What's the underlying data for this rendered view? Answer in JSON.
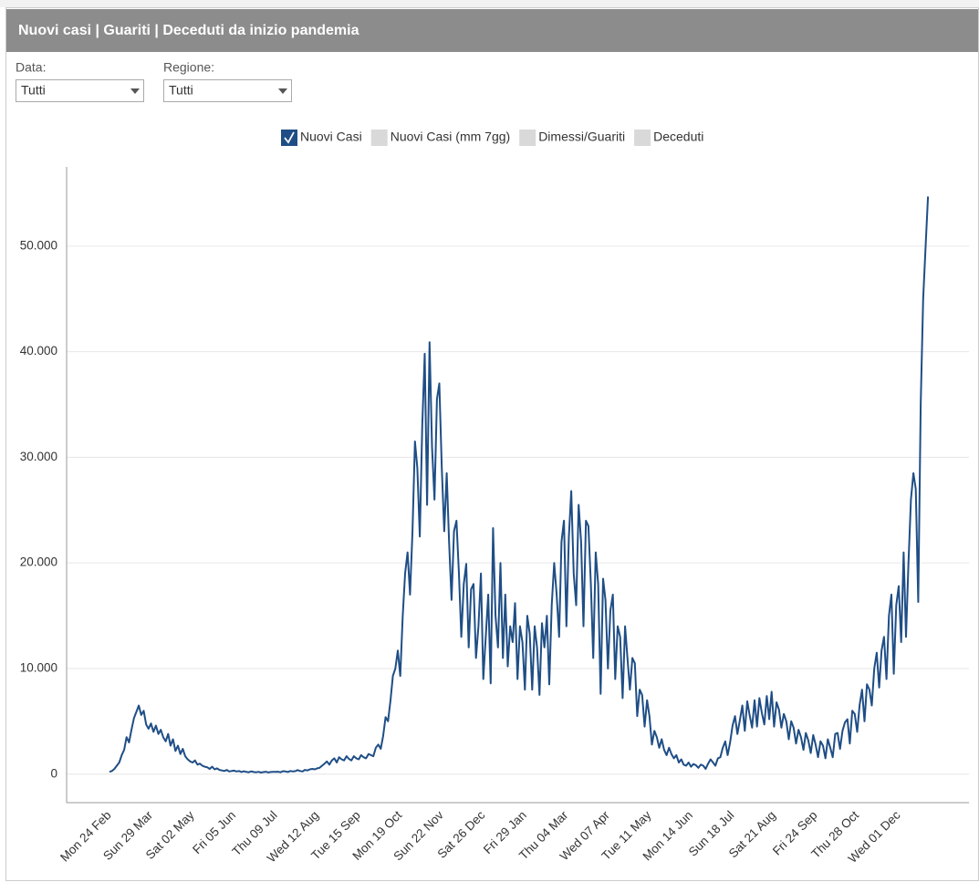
{
  "header": {
    "title": "Nuovi casi | Guariti | Deceduti da inizio pandemia"
  },
  "filters": [
    {
      "label": "Data:",
      "value": "Tutti"
    },
    {
      "label": "Regione:",
      "value": "Tutti"
    }
  ],
  "chart_data": {
    "type": "line",
    "categories": [
      "Mon 24 Feb",
      null,
      null,
      null,
      null,
      null,
      null,
      null,
      null,
      null,
      null,
      null,
      null,
      null,
      null,
      null,
      null,
      "Sun 29 Mar",
      null,
      null,
      null,
      null,
      null,
      null,
      null,
      null,
      null,
      null,
      null,
      null,
      null,
      null,
      null,
      null,
      "Sat 02 May",
      null,
      null,
      null,
      null,
      null,
      null,
      null,
      null,
      null,
      null,
      null,
      null,
      null,
      null,
      null,
      null,
      "Fri 05 Jun",
      null,
      null,
      null,
      null,
      null,
      null,
      null,
      null,
      null,
      null,
      null,
      null,
      null,
      null,
      null,
      null,
      "Thu 09 Jul",
      null,
      null,
      null,
      null,
      null,
      null,
      null,
      null,
      null,
      null,
      null,
      null,
      null,
      null,
      null,
      null,
      "Wed 12 Aug",
      null,
      null,
      null,
      null,
      null,
      null,
      null,
      null,
      null,
      null,
      null,
      null,
      null,
      null,
      null,
      null,
      "Tue 15 Sep",
      null,
      null,
      null,
      null,
      null,
      null,
      null,
      null,
      null,
      null,
      null,
      null,
      null,
      null,
      null,
      null,
      "Mon 19 Oct",
      null,
      null,
      null,
      null,
      null,
      null,
      null,
      null,
      null,
      null,
      null,
      null,
      null,
      null,
      null,
      null,
      "Sun 22 Nov",
      null,
      null,
      null,
      null,
      null,
      null,
      null,
      null,
      null,
      null,
      null,
      null,
      null,
      null,
      null,
      null,
      "Sat 26 Dec",
      null,
      null,
      null,
      null,
      null,
      null,
      null,
      null,
      null,
      null,
      null,
      null,
      null,
      null,
      null,
      null,
      "Fri 29 Jan",
      null,
      null,
      null,
      null,
      null,
      null,
      null,
      null,
      null,
      null,
      null,
      null,
      null,
      null,
      null,
      null,
      "Thu 04 Mar",
      null,
      null,
      null,
      null,
      null,
      null,
      null,
      null,
      null,
      null,
      null,
      null,
      null,
      null,
      null,
      null,
      "Wed 07 Apr",
      null,
      null,
      null,
      null,
      null,
      null,
      null,
      null,
      null,
      null,
      null,
      null,
      null,
      null,
      null,
      null,
      "Tue 11 May",
      null,
      null,
      null,
      null,
      null,
      null,
      null,
      null,
      null,
      null,
      null,
      null,
      null,
      null,
      null,
      null,
      "Mon 14 Jun",
      null,
      null,
      null,
      null,
      null,
      null,
      null,
      null,
      null,
      null,
      null,
      null,
      null,
      null,
      null,
      null,
      "Sun 18 Jul",
      null,
      null,
      null,
      null,
      null,
      null,
      null,
      null,
      null,
      null,
      null,
      null,
      null,
      null,
      null,
      null,
      "Sat 21 Aug",
      null,
      null,
      null,
      null,
      null,
      null,
      null,
      null,
      null,
      null,
      null,
      null,
      null,
      null,
      null,
      null,
      "Fri 24 Sep",
      null,
      null,
      null,
      null,
      null,
      null,
      null,
      null,
      null,
      null,
      null,
      null,
      null,
      null,
      null,
      null,
      "Thu 28 Oct",
      null,
      null,
      null,
      null,
      null,
      null,
      null,
      null,
      null,
      null,
      null,
      null,
      null,
      null,
      null,
      null,
      "Wed 01 Dec",
      null,
      null,
      null,
      null,
      null,
      null,
      null,
      null,
      null,
      null,
      null,
      null
    ],
    "series": [
      {
        "name": "Nuovi Casi",
        "color": "#1f4e86",
        "values": [
          220,
          300,
          500,
          800,
          1100,
          1800,
          2300,
          3500,
          3000,
          4200,
          5300,
          5900,
          6500,
          5600,
          6000,
          4700,
          4300,
          4800,
          4000,
          4600,
          3800,
          4200,
          3500,
          3100,
          3800,
          2700,
          3300,
          2200,
          2700,
          1900,
          2400,
          1700,
          1400,
          1200,
          1100,
          1300,
          900,
          1000,
          800,
          700,
          650,
          500,
          700,
          450,
          550,
          400,
          350,
          300,
          400,
          250,
          300,
          330,
          250,
          300,
          200,
          270,
          210,
          180,
          260,
          200,
          180,
          220,
          150,
          190,
          230,
          160,
          200,
          210,
          220,
          230,
          180,
          280,
          250,
          200,
          300,
          250,
          280,
          380,
          300,
          250,
          400,
          350,
          450,
          500,
          450,
          550,
          600,
          800,
          1000,
          1200,
          900,
          1300,
          1500,
          1100,
          1600,
          1400,
          1300,
          1700,
          1450,
          1300,
          1700,
          1500,
          1400,
          1800,
          1600,
          1500,
          1900,
          1800,
          1700,
          2500,
          2800,
          2400,
          3600,
          5400,
          5000,
          7000,
          9300,
          10000,
          11700,
          9300,
          15000,
          19000,
          21000,
          17000,
          23000,
          31500,
          29000,
          22500,
          33000,
          39800,
          25500,
          40900,
          31000,
          26000,
          35500,
          37000,
          29000,
          23000,
          28500,
          22000,
          16500,
          23000,
          24000,
          19000,
          13000,
          18000,
          19900,
          12000,
          17500,
          18000,
          11000,
          14000,
          19000,
          9000,
          13000,
          17000,
          8600,
          23300,
          15000,
          12000,
          20000,
          11000,
          17000,
          10200,
          14000,
          12500,
          16200,
          9000,
          14000,
          12500,
          8000,
          15000,
          13300,
          8000,
          14000,
          12000,
          7500,
          14300,
          12000,
          15000,
          8500,
          16000,
          20000,
          17000,
          13000,
          22000,
          24000,
          14000,
          22500,
          26800,
          19000,
          16000,
          25500,
          22000,
          14000,
          24000,
          23500,
          18000,
          11000,
          21000,
          18000,
          7600,
          18500,
          16500,
          10000,
          15500,
          17000,
          9000,
          14000,
          13000,
          7200,
          14000,
          11000,
          8000,
          11000,
          10500,
          5500,
          8000,
          7500,
          4500,
          7000,
          5500,
          2800,
          4100,
          3500,
          2500,
          3300,
          2300,
          1800,
          2500,
          1900,
          1500,
          1800,
          1100,
          1400,
          900,
          800,
          1100,
          700,
          950,
          850,
          600,
          900,
          800,
          500,
          1000,
          1400,
          1100,
          800,
          1500,
          1600,
          2500,
          3100,
          1800,
          3000,
          4600,
          5500,
          3800,
          5100,
          6500,
          4100,
          6900,
          5600,
          4400,
          7000,
          4500,
          7200,
          5800,
          4700,
          7400,
          5200,
          7800,
          4500,
          6800,
          6100,
          4400,
          5700,
          5000,
          3300,
          5000,
          4400,
          2900,
          4200,
          3500,
          2300,
          3900,
          3200,
          2000,
          3700,
          2800,
          1600,
          3100,
          2700,
          1500,
          3300,
          2500,
          1600,
          3800,
          3900,
          2400,
          4100,
          4900,
          5200,
          2900,
          6000,
          5700,
          4000,
          6500,
          8000,
          5000,
          8500,
          8000,
          6500,
          10000,
          11500,
          8200,
          11700,
          13000,
          9000,
          15000,
          17000,
          9500,
          16000,
          17800,
          12500,
          21000,
          13000,
          20000,
          26000,
          28500,
          27000,
          16300,
          35000,
          45000,
          50000,
          54700
        ]
      }
    ],
    "inactive_series": [
      "Nuovi Casi (mm 7gg)",
      "Dimessi/Guariti",
      "Deceduti"
    ],
    "ylim": [
      -2700,
      57500
    ],
    "yticks": [
      0,
      {
        "value": 10000,
        "label": "10.000"
      },
      {
        "value": 20000,
        "label": "20.000"
      },
      {
        "value": 30000,
        "label": "30.000"
      },
      {
        "value": 40000,
        "label": "40.000"
      },
      {
        "value": 50000,
        "label": "50.000"
      }
    ],
    "grid": true
  }
}
